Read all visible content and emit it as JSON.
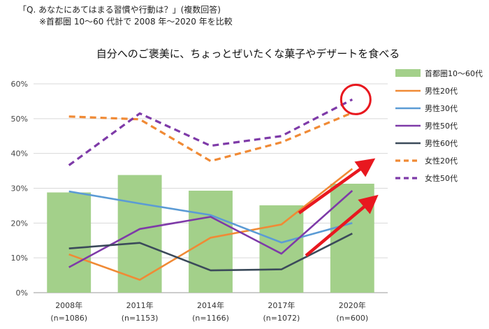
{
  "header": {
    "line1": "「Q. あなたにあてはまる習慣や行動は？」(複数回答)",
    "line2": "※首都圏 10～60 代計で 2008 年～2020 年を比較"
  },
  "chart_data": {
    "type": "bar+line",
    "title": "自分へのご褒美に、ちょっとぜいたくな菓子やデザートを食べる",
    "categories": [
      "2008年",
      "2011年",
      "2014年",
      "2017年",
      "2020年"
    ],
    "category_notes": [
      "(n=1086)",
      "(n=1153)",
      "(n=1166)",
      "(n=1072)",
      "(n=600)"
    ],
    "ylim": [
      0,
      60
    ],
    "yticks": [
      "0%",
      "10%",
      "20%",
      "30%",
      "40%",
      "50%",
      "60%"
    ],
    "bar_series": {
      "name": "首都圏10～60代",
      "values": [
        28.8,
        33.8,
        29.3,
        25.1,
        31.3
      ],
      "color": "#a3d08a"
    },
    "line_series": [
      {
        "name": "男性20代",
        "values": [
          11.0,
          3.7,
          15.8,
          19.6,
          35.6
        ],
        "color": "#f08a35",
        "dash": false
      },
      {
        "name": "男性30代",
        "values": [
          29.1,
          25.6,
          22.3,
          14.4,
          20.0
        ],
        "color": "#5b9bd5",
        "dash": false
      },
      {
        "name": "男性50代",
        "values": [
          7.3,
          18.3,
          21.8,
          11.2,
          29.3
        ],
        "color": "#7e3aa8",
        "dash": false
      },
      {
        "name": "男性60代",
        "values": [
          12.7,
          14.3,
          6.4,
          6.7,
          17.0
        ],
        "color": "#3b4a5a",
        "dash": false
      },
      {
        "name": "女性20代",
        "values": [
          50.6,
          49.8,
          37.8,
          43.2,
          51.7
        ],
        "color": "#f08a35",
        "dash": true
      },
      {
        "name": "女性50代",
        "values": [
          36.6,
          51.5,
          42.2,
          45.0,
          55.5
        ],
        "color": "#7e3aa8",
        "dash": true
      }
    ],
    "grid": true,
    "legend_position": "right"
  }
}
